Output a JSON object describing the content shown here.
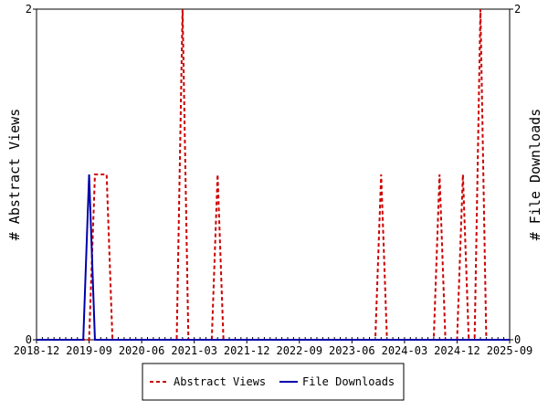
{
  "chart_data": {
    "type": "line",
    "y_left_label": "# Abstract Views",
    "y_right_label": "# File Downloads",
    "x_ticks": [
      "2018-12",
      "2019-09",
      "2020-06",
      "2021-03",
      "2021-12",
      "2022-09",
      "2023-06",
      "2024-03",
      "2024-12",
      "2025-09"
    ],
    "y_left_ticks": [
      "0",
      "2"
    ],
    "y_right_ticks": [
      "0",
      "2"
    ],
    "y_range": [
      0,
      2
    ],
    "x_range": [
      "2018-12",
      "2025-09"
    ],
    "grid": false,
    "legend_position": "bottom",
    "series": [
      {
        "name": "Abstract Views",
        "color": "#cc0000",
        "style": "dashed",
        "points": [
          [
            "2018-12",
            0
          ],
          [
            "2019-09",
            0
          ],
          [
            "2019-10",
            1
          ],
          [
            "2019-11",
            1
          ],
          [
            "2019-12",
            1
          ],
          [
            "2020-01",
            0
          ],
          [
            "2020-12",
            0
          ],
          [
            "2021-01",
            2
          ],
          [
            "2021-02",
            0
          ],
          [
            "2021-06",
            0
          ],
          [
            "2021-07",
            1
          ],
          [
            "2021-08",
            0
          ],
          [
            "2023-10",
            0
          ],
          [
            "2023-11",
            1
          ],
          [
            "2023-12",
            0
          ],
          [
            "2024-08",
            0
          ],
          [
            "2024-09",
            1
          ],
          [
            "2024-10",
            0
          ],
          [
            "2024-12",
            0
          ],
          [
            "2025-01",
            1
          ],
          [
            "2025-02",
            0
          ],
          [
            "2025-03",
            0
          ],
          [
            "2025-04",
            2
          ],
          [
            "2025-05",
            0
          ],
          [
            "2025-09",
            0
          ]
        ]
      },
      {
        "name": "File Downloads",
        "color": "#0000aa",
        "style": "solid",
        "points": [
          [
            "2018-12",
            0
          ],
          [
            "2019-08",
            0
          ],
          [
            "2019-09",
            1
          ],
          [
            "2019-10",
            0
          ],
          [
            "2025-09",
            0
          ]
        ]
      }
    ]
  }
}
